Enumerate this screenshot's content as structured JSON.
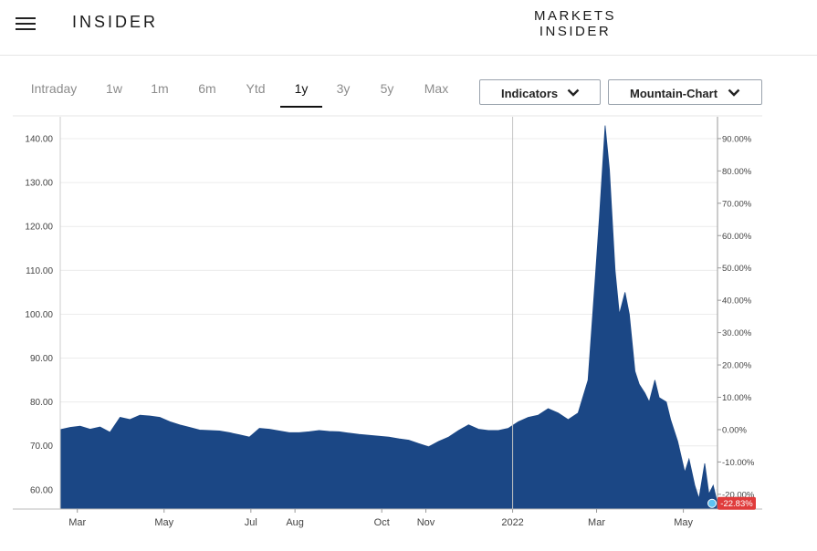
{
  "header": {
    "brand": "INSIDER",
    "markets_logo_line1": "MARKETS",
    "markets_logo_line2": "INSIDER",
    "menu_icon": "hamburger-menu-icon"
  },
  "range_tabs": [
    {
      "label": "Intraday",
      "active": false
    },
    {
      "label": "1w",
      "active": false
    },
    {
      "label": "1m",
      "active": false
    },
    {
      "label": "6m",
      "active": false
    },
    {
      "label": "Ytd",
      "active": false
    },
    {
      "label": "1y",
      "active": true
    },
    {
      "label": "3y",
      "active": false
    },
    {
      "label": "5y",
      "active": false
    },
    {
      "label": "Max",
      "active": false
    }
  ],
  "controls": {
    "indicators_label": "Indicators",
    "chart_type_label": "Mountain-Chart",
    "chevron_icon": "chevron-down-icon"
  },
  "chart_data": {
    "type": "area",
    "title": "",
    "xlabel": "",
    "ylabel": "",
    "fill_color": "#1b4785",
    "last_badge_color": "#e03c3c",
    "ylim": [
      55.6,
      145
    ],
    "y_ticks": [
      "140.00",
      "130.00",
      "120.00",
      "110.00",
      "100.00",
      "90.00",
      "80.00",
      "70.00",
      "60.00"
    ],
    "y_tick_values": [
      140,
      130,
      120,
      110,
      100,
      90,
      80,
      70,
      60
    ],
    "y2_ticks": [
      "90.00%",
      "80.00%",
      "70.00%",
      "60.00%",
      "50.00%",
      "40.00%",
      "30.00%",
      "20.00%",
      "10.00%",
      "0.00%",
      "-10.00%",
      "-20.00%"
    ],
    "y2_tick_values": [
      90,
      80,
      70,
      60,
      50,
      40,
      30,
      20,
      10,
      0,
      -10,
      -20
    ],
    "y2_base_price": 73.7,
    "x_ticks": [
      {
        "label": "Mar",
        "date": "2021-03-01"
      },
      {
        "label": "May",
        "date": "2021-05-01"
      },
      {
        "label": "Jul",
        "date": "2021-07-01"
      },
      {
        "label": "Aug",
        "date": "2021-08-01"
      },
      {
        "label": "Oct",
        "date": "2021-10-01"
      },
      {
        "label": "Nov",
        "date": "2021-11-01"
      },
      {
        "label": "2022",
        "date": "2022-01-01"
      },
      {
        "label": "Mar",
        "date": "2022-03-01"
      },
      {
        "label": "May",
        "date": "2022-05-01"
      }
    ],
    "xlim": [
      "2021-02-17",
      "2022-05-25"
    ],
    "divider_date": "2022-01-01",
    "last_value_label": "-22.83%",
    "series": [
      {
        "points": [
          [
            "2021-02-17",
            73.7
          ],
          [
            "2021-02-24",
            74.2
          ],
          [
            "2021-03-03",
            74.5
          ],
          [
            "2021-03-10",
            73.8
          ],
          [
            "2021-03-17",
            74.3
          ],
          [
            "2021-03-24",
            73.1
          ],
          [
            "2021-03-31",
            76.5
          ],
          [
            "2021-04-07",
            76.0
          ],
          [
            "2021-04-14",
            77.0
          ],
          [
            "2021-04-21",
            76.8
          ],
          [
            "2021-04-28",
            76.5
          ],
          [
            "2021-05-05",
            75.5
          ],
          [
            "2021-05-12",
            74.8
          ],
          [
            "2021-05-19",
            74.2
          ],
          [
            "2021-05-26",
            73.6
          ],
          [
            "2021-06-02",
            73.5
          ],
          [
            "2021-06-09",
            73.4
          ],
          [
            "2021-06-16",
            73.0
          ],
          [
            "2021-06-23",
            72.5
          ],
          [
            "2021-06-30",
            72.0
          ],
          [
            "2021-07-07",
            74.0
          ],
          [
            "2021-07-14",
            73.8
          ],
          [
            "2021-07-21",
            73.4
          ],
          [
            "2021-07-28",
            73.0
          ],
          [
            "2021-08-04",
            73.0
          ],
          [
            "2021-08-11",
            73.2
          ],
          [
            "2021-08-18",
            73.5
          ],
          [
            "2021-08-25",
            73.3
          ],
          [
            "2021-09-01",
            73.2
          ],
          [
            "2021-09-08",
            72.9
          ],
          [
            "2021-09-15",
            72.6
          ],
          [
            "2021-09-22",
            72.4
          ],
          [
            "2021-09-29",
            72.2
          ],
          [
            "2021-10-06",
            72.0
          ],
          [
            "2021-10-13",
            71.6
          ],
          [
            "2021-10-20",
            71.3
          ],
          [
            "2021-10-27",
            70.5
          ],
          [
            "2021-11-03",
            69.8
          ],
          [
            "2021-11-10",
            71.0
          ],
          [
            "2021-11-17",
            72.0
          ],
          [
            "2021-11-24",
            73.5
          ],
          [
            "2021-12-01",
            74.8
          ],
          [
            "2021-12-08",
            73.8
          ],
          [
            "2021-12-15",
            73.5
          ],
          [
            "2021-12-22",
            73.5
          ],
          [
            "2021-12-29",
            74.0
          ],
          [
            "2022-01-05",
            75.5
          ],
          [
            "2022-01-12",
            76.5
          ],
          [
            "2022-01-19",
            77.0
          ],
          [
            "2022-01-26",
            78.5
          ],
          [
            "2022-02-02",
            77.5
          ],
          [
            "2022-02-09",
            76.0
          ],
          [
            "2022-02-16",
            77.5
          ],
          [
            "2022-02-23",
            85.0
          ],
          [
            "2022-02-28",
            108.0
          ],
          [
            "2022-03-03",
            122.0
          ],
          [
            "2022-03-07",
            143.0
          ],
          [
            "2022-03-10",
            133.0
          ],
          [
            "2022-03-14",
            110.0
          ],
          [
            "2022-03-17",
            100.0
          ],
          [
            "2022-03-21",
            105.0
          ],
          [
            "2022-03-24",
            100.0
          ],
          [
            "2022-03-28",
            87.0
          ],
          [
            "2022-03-31",
            84.0
          ],
          [
            "2022-04-04",
            82.0
          ],
          [
            "2022-04-07",
            80.0
          ],
          [
            "2022-04-11",
            85.0
          ],
          [
            "2022-04-14",
            81.0
          ],
          [
            "2022-04-19",
            80.0
          ],
          [
            "2022-04-22",
            76.0
          ],
          [
            "2022-04-27",
            71.0
          ],
          [
            "2022-05-02",
            64.0
          ],
          [
            "2022-05-05",
            67.0
          ],
          [
            "2022-05-09",
            61.0
          ],
          [
            "2022-05-12",
            58.0
          ],
          [
            "2022-05-16",
            66.0
          ],
          [
            "2022-05-19",
            59.0
          ],
          [
            "2022-05-22",
            61.0
          ],
          [
            "2022-05-25",
            56.9
          ]
        ]
      }
    ]
  }
}
